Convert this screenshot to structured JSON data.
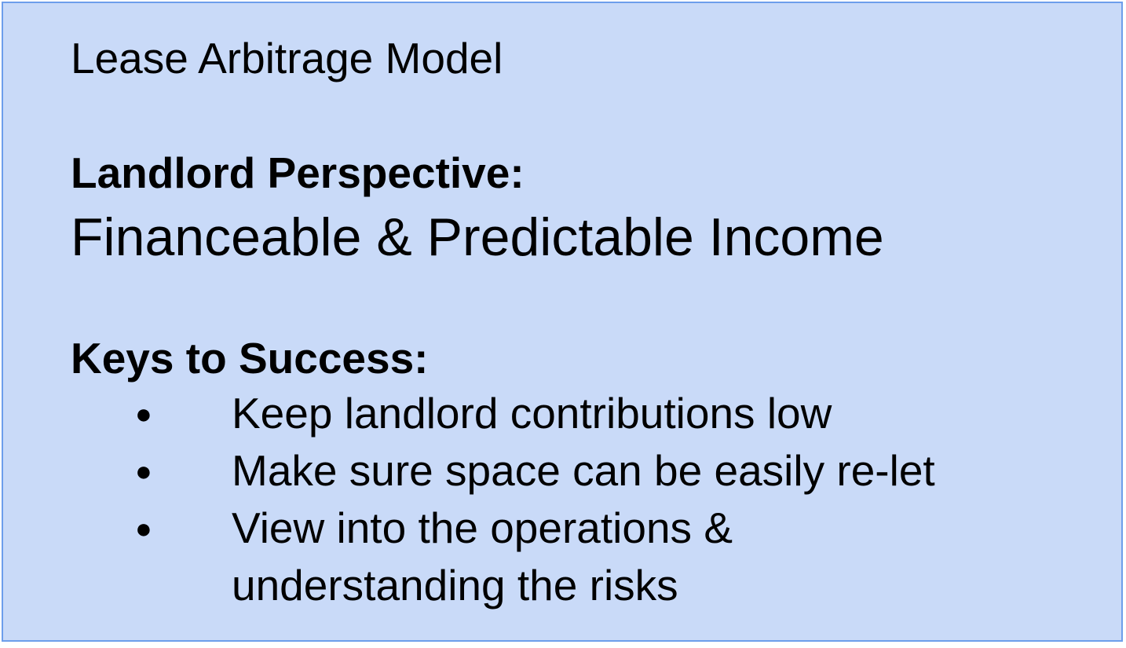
{
  "title": "Lease Arbitrage Model",
  "perspective": {
    "label": "Landlord Perspective:",
    "value": "Financeable & Predictable Income"
  },
  "keys": {
    "label": "Keys to Success:",
    "bullet_glyph": "●",
    "items": [
      "Keep landlord contributions low",
      "Make sure space can be easily re-let",
      "View into the operations &\nunderstanding the risks"
    ]
  },
  "colors": {
    "background": "#c9daf8",
    "border": "#6d9eeb",
    "text": "#000000"
  }
}
